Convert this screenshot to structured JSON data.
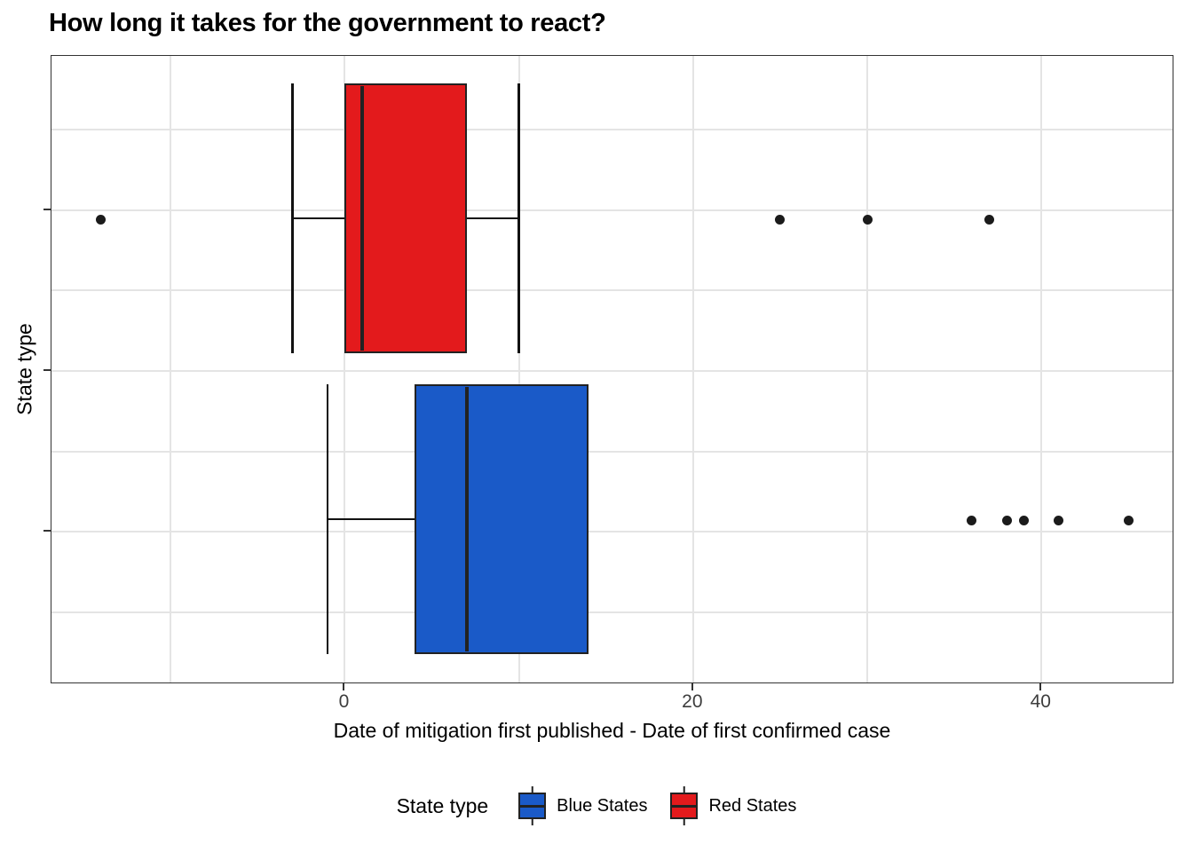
{
  "title": "How long it takes for the government to react?",
  "chart_data": {
    "type": "boxplot",
    "orientation": "horizontal",
    "title": "How long it takes for the government to react?",
    "xlabel": "Date of mitigation first published - Date of first confirmed case",
    "ylabel": "State type",
    "xlim": [
      -16.84,
      47.53
    ],
    "x_major_ticks": [
      0,
      20,
      40
    ],
    "x_tick_labels": [
      "0",
      "20",
      "40"
    ],
    "x_minor_gridlines": [
      -10,
      10,
      30
    ],
    "grid": true,
    "y_categories_hidden": true,
    "series": [
      {
        "name": "Red States",
        "fill": "#E31A1C",
        "whisker_min": -3,
        "q1": 0,
        "median": 1,
        "q3": 7,
        "whisker_max": 10,
        "outliers": [
          -14,
          25,
          30,
          37
        ],
        "row_center_frac": 0.2592
      },
      {
        "name": "Blue States",
        "fill": "#1A5AC8",
        "whisker_min": -1,
        "q1": 4,
        "median": 7,
        "q3": 14,
        "whisker_max": 14,
        "outliers": [
          36,
          38,
          39,
          41,
          45
        ],
        "row_center_frac": 0.7394
      }
    ],
    "legend": {
      "title": "State type",
      "position": "bottom",
      "entries": [
        "Blue States",
        "Red States"
      ]
    }
  },
  "legend": {
    "title": "State type",
    "blue_label": "Blue States",
    "red_label": "Red States"
  },
  "axes": {
    "x_title": "Date of mitigation first published - Date of first confirmed case",
    "y_title": "State type"
  }
}
